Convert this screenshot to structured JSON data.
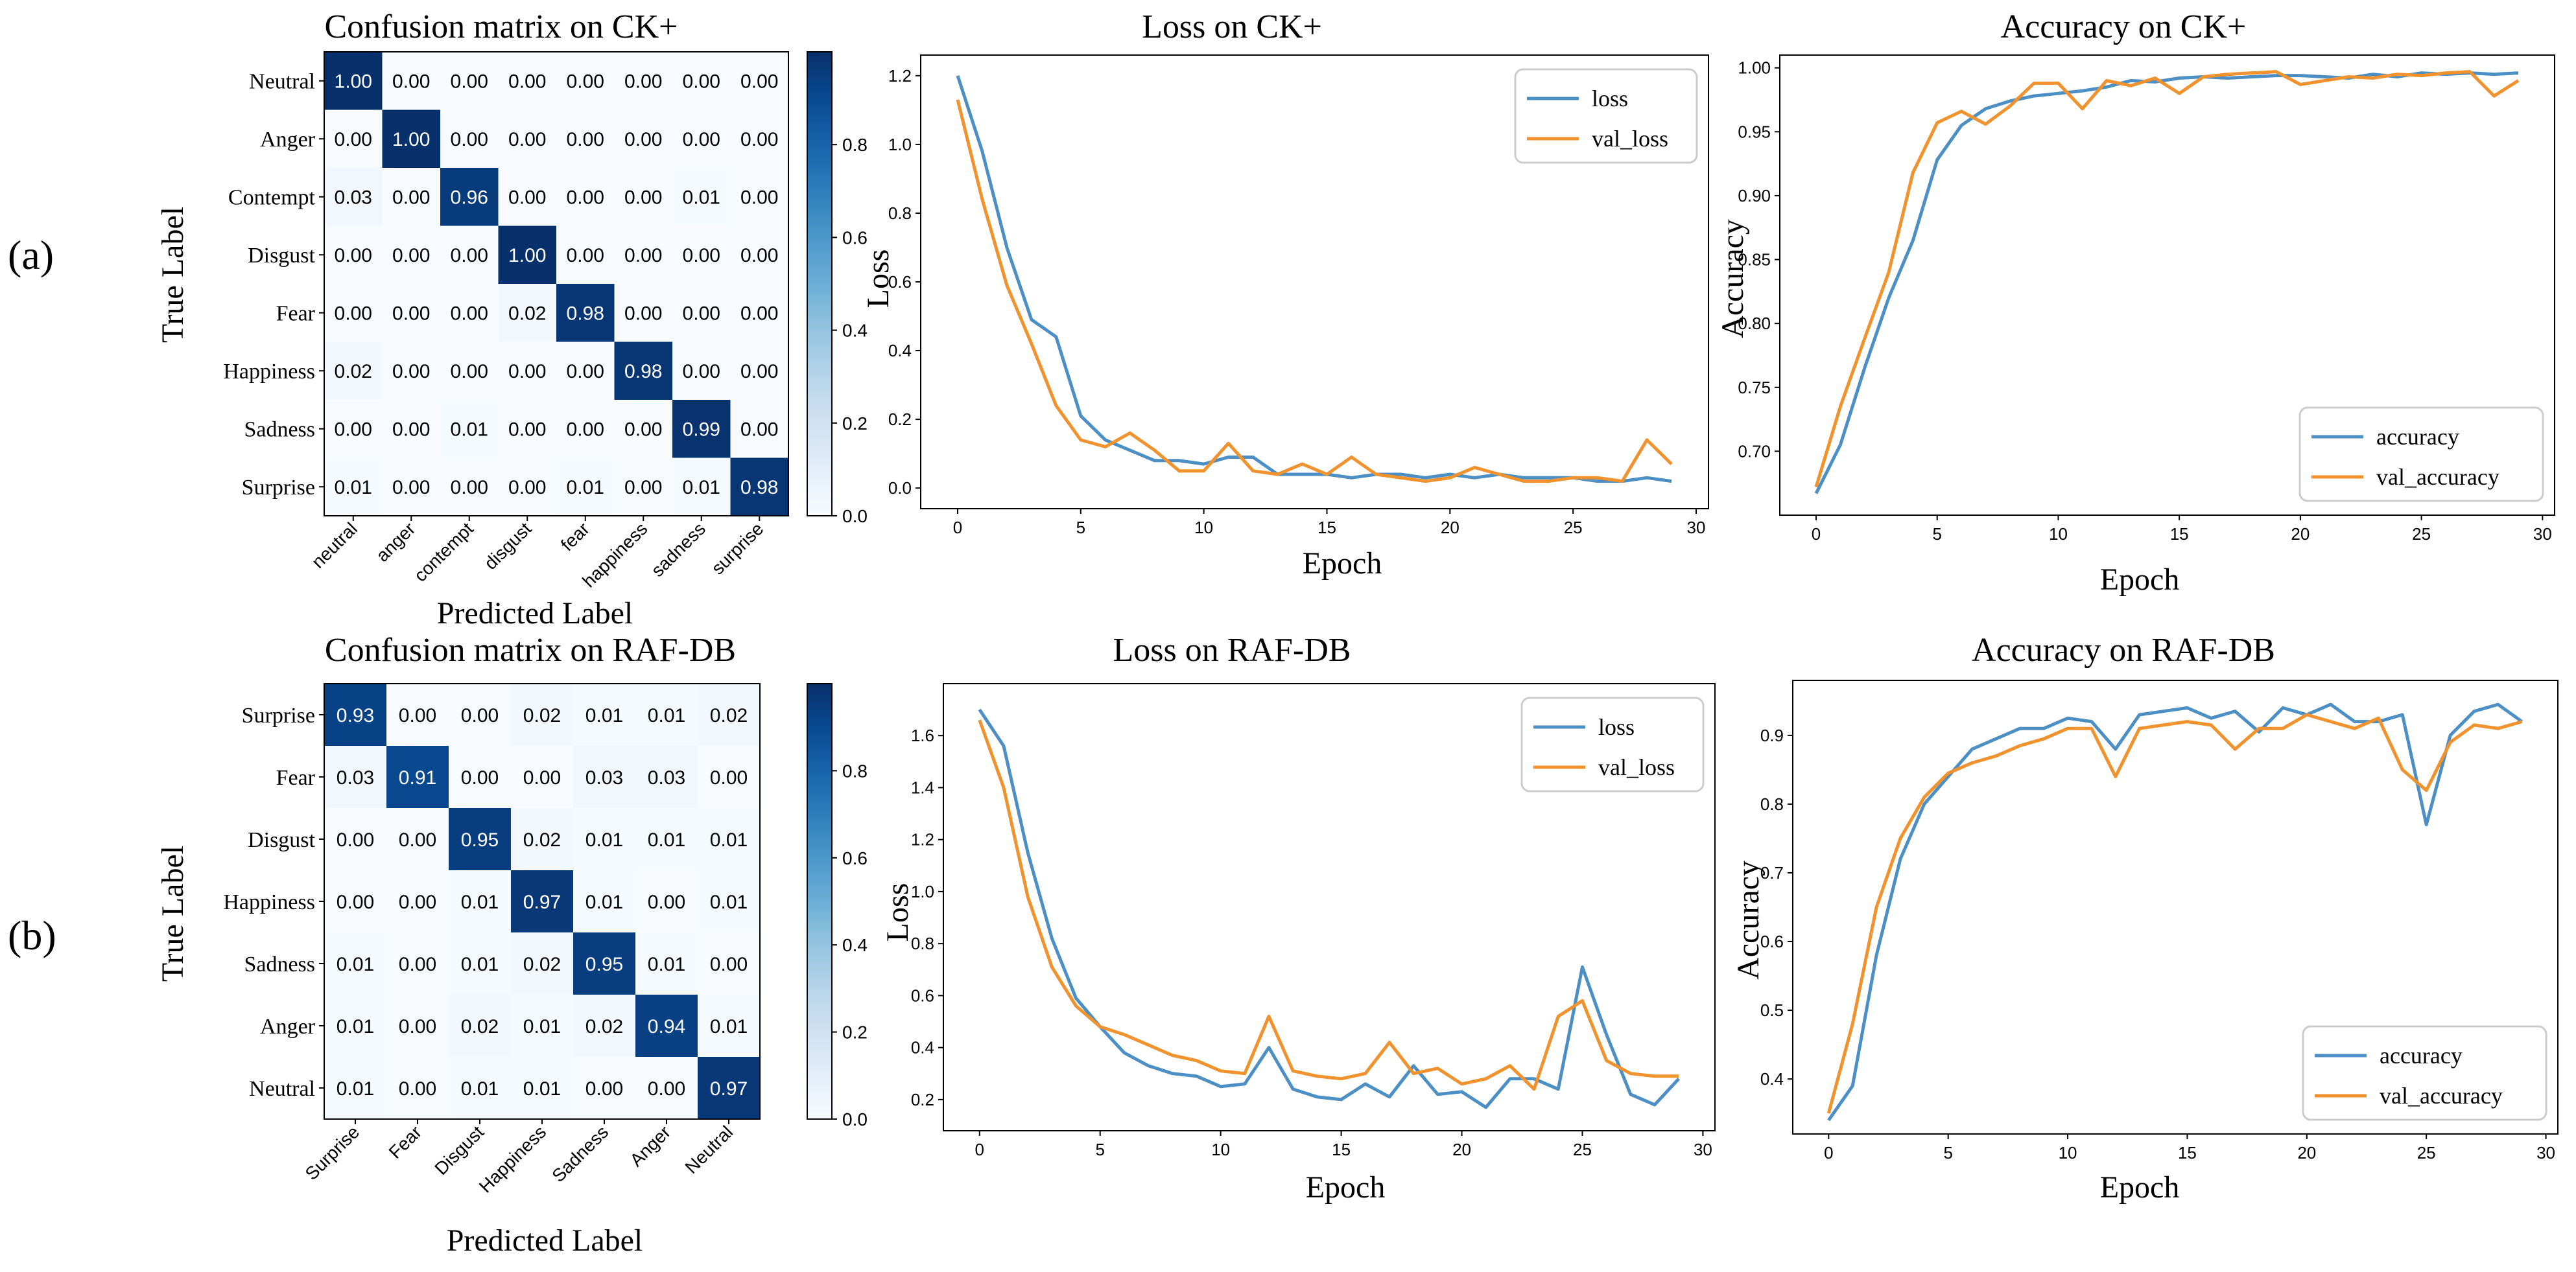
{
  "panel_labels": {
    "a": "(a)",
    "b": "(b)"
  },
  "colors": {
    "cm_low": "#f7fbff",
    "cm_high": "#08306b",
    "loss": "#4c8fc4",
    "val": "#f0922e",
    "frame": "#000000",
    "legend_border": "#cccccc"
  },
  "chart_data": [
    {
      "id": "cm-ck",
      "type": "heatmap",
      "title": "Confusion matrix on CK+",
      "xlabel": "Predicted Label",
      "ylabel": "True Label",
      "rows": [
        "Neutral",
        "Anger",
        "Contempt",
        "Disgust",
        "Fear",
        "Happiness",
        "Sadness",
        "Surprise"
      ],
      "cols": [
        "neutral",
        "anger",
        "contempt",
        "disgust",
        "fear",
        "happiness",
        "sadness",
        "surprise"
      ],
      "values": [
        [
          1.0,
          0.0,
          0.0,
          0.0,
          0.0,
          0.0,
          0.0,
          0.0
        ],
        [
          0.0,
          1.0,
          0.0,
          0.0,
          0.0,
          0.0,
          0.0,
          0.0
        ],
        [
          0.03,
          0.0,
          0.96,
          0.0,
          0.0,
          0.0,
          0.01,
          0.0
        ],
        [
          0.0,
          0.0,
          0.0,
          1.0,
          0.0,
          0.0,
          0.0,
          0.0
        ],
        [
          0.0,
          0.0,
          0.0,
          0.02,
          0.98,
          0.0,
          0.0,
          0.0
        ],
        [
          0.02,
          0.0,
          0.0,
          0.0,
          0.0,
          0.98,
          0.0,
          0.0
        ],
        [
          0.0,
          0.0,
          0.01,
          0.0,
          0.0,
          0.0,
          0.99,
          0.0
        ],
        [
          0.01,
          0.0,
          0.0,
          0.0,
          0.01,
          0.0,
          0.01,
          0.98
        ]
      ],
      "colorbar_ticks": [
        "0.0",
        "0.2",
        "0.4",
        "0.6",
        "0.8"
      ],
      "colorbar_range": [
        0,
        1
      ]
    },
    {
      "id": "loss-ck",
      "type": "line",
      "title": "Loss on CK+",
      "xlabel": "Epoch",
      "ylabel": "Loss",
      "xlim": [
        -1.5,
        30.5
      ],
      "ylim": [
        -0.06,
        1.26
      ],
      "xticks": [
        0,
        5,
        10,
        15,
        20,
        25,
        30
      ],
      "yticks": [
        0.0,
        0.2,
        0.4,
        0.6,
        0.8,
        1.0,
        1.2
      ],
      "legend_position": "top-right",
      "x": [
        0,
        1,
        2,
        3,
        4,
        5,
        6,
        7,
        8,
        9,
        10,
        11,
        12,
        13,
        14,
        15,
        16,
        17,
        18,
        19,
        20,
        21,
        22,
        23,
        24,
        25,
        26,
        27,
        28,
        29
      ],
      "series": [
        {
          "name": "loss",
          "color_key": "loss",
          "values": [
            1.2,
            0.98,
            0.7,
            0.49,
            0.44,
            0.21,
            0.14,
            0.11,
            0.08,
            0.08,
            0.07,
            0.09,
            0.09,
            0.04,
            0.04,
            0.04,
            0.03,
            0.04,
            0.04,
            0.03,
            0.04,
            0.03,
            0.04,
            0.03,
            0.03,
            0.03,
            0.02,
            0.02,
            0.03,
            0.02
          ]
        },
        {
          "name": "val_loss",
          "color_key": "val",
          "values": [
            1.13,
            0.84,
            0.59,
            0.42,
            0.24,
            0.14,
            0.12,
            0.16,
            0.11,
            0.05,
            0.05,
            0.13,
            0.05,
            0.04,
            0.07,
            0.04,
            0.09,
            0.04,
            0.03,
            0.02,
            0.03,
            0.06,
            0.04,
            0.02,
            0.02,
            0.03,
            0.03,
            0.02,
            0.14,
            0.07
          ]
        }
      ]
    },
    {
      "id": "acc-ck",
      "type": "line",
      "title": "Accuracy on CK+",
      "xlabel": "Epoch",
      "ylabel": "Accuracy",
      "xlim": [
        -1.5,
        30.5
      ],
      "ylim": [
        0.65,
        1.01
      ],
      "xticks": [
        0,
        5,
        10,
        15,
        20,
        25,
        30
      ],
      "yticks": [
        0.7,
        0.75,
        0.8,
        0.85,
        0.9,
        0.95,
        1.0
      ],
      "legend_position": "bottom-right",
      "x": [
        0,
        1,
        2,
        3,
        4,
        5,
        6,
        7,
        8,
        9,
        10,
        11,
        12,
        13,
        14,
        15,
        16,
        17,
        18,
        19,
        20,
        21,
        22,
        23,
        24,
        25,
        26,
        27,
        28,
        29
      ],
      "series": [
        {
          "name": "accuracy",
          "color_key": "loss",
          "values": [
            0.667,
            0.705,
            0.765,
            0.82,
            0.865,
            0.928,
            0.955,
            0.968,
            0.974,
            0.978,
            0.98,
            0.982,
            0.985,
            0.99,
            0.989,
            0.992,
            0.993,
            0.992,
            0.993,
            0.994,
            0.994,
            0.993,
            0.992,
            0.995,
            0.993,
            0.996,
            0.995,
            0.996,
            0.995,
            0.996
          ]
        },
        {
          "name": "val_accuracy",
          "color_key": "val",
          "values": [
            0.672,
            0.735,
            0.788,
            0.84,
            0.918,
            0.957,
            0.966,
            0.956,
            0.97,
            0.988,
            0.988,
            0.968,
            0.99,
            0.986,
            0.992,
            0.98,
            0.993,
            0.995,
            0.996,
            0.997,
            0.987,
            0.99,
            0.993,
            0.992,
            0.995,
            0.994,
            0.996,
            0.997,
            0.978,
            0.99
          ]
        }
      ]
    },
    {
      "id": "cm-raf",
      "type": "heatmap",
      "title": "Confusion matrix on RAF-DB",
      "xlabel": "Predicted Label",
      "ylabel": "True Label",
      "rows": [
        "Surprise",
        "Fear",
        "Disgust",
        "Happiness",
        "Sadness",
        "Anger",
        "Neutral"
      ],
      "cols": [
        "Surprise",
        "Fear",
        "Disgust",
        "Happiness",
        "Sadness",
        "Anger",
        "Neutral"
      ],
      "values": [
        [
          0.93,
          0.0,
          0.0,
          0.02,
          0.01,
          0.01,
          0.02
        ],
        [
          0.03,
          0.91,
          0.0,
          0.0,
          0.03,
          0.03,
          0.0
        ],
        [
          0.0,
          0.0,
          0.95,
          0.02,
          0.01,
          0.01,
          0.01
        ],
        [
          0.0,
          0.0,
          0.01,
          0.97,
          0.01,
          0.0,
          0.01
        ],
        [
          0.01,
          0.0,
          0.01,
          0.02,
          0.95,
          0.01,
          0.0
        ],
        [
          0.01,
          0.0,
          0.02,
          0.01,
          0.02,
          0.94,
          0.01
        ],
        [
          0.01,
          0.0,
          0.01,
          0.01,
          0.0,
          0.0,
          0.97
        ]
      ],
      "colorbar_ticks": [
        "0.0",
        "0.2",
        "0.4",
        "0.6",
        "0.8"
      ],
      "colorbar_range": [
        0,
        1
      ]
    },
    {
      "id": "loss-raf",
      "type": "line",
      "title": "Loss on RAF-DB",
      "xlabel": "Epoch",
      "ylabel": "Loss",
      "xlim": [
        -1.5,
        30.5
      ],
      "ylim": [
        0.08,
        1.8
      ],
      "xticks": [
        0,
        5,
        10,
        15,
        20,
        25,
        30
      ],
      "yticks": [
        0.2,
        0.4,
        0.6,
        0.8,
        1.0,
        1.2,
        1.4,
        1.6
      ],
      "legend_position": "top-right",
      "x": [
        0,
        1,
        2,
        3,
        4,
        5,
        6,
        7,
        8,
        9,
        10,
        11,
        12,
        13,
        14,
        15,
        16,
        17,
        18,
        19,
        20,
        21,
        22,
        23,
        24,
        25,
        26,
        27,
        28,
        29
      ],
      "series": [
        {
          "name": "loss",
          "color_key": "loss",
          "values": [
            1.7,
            1.56,
            1.15,
            0.82,
            0.59,
            0.48,
            0.38,
            0.33,
            0.3,
            0.29,
            0.25,
            0.26,
            0.4,
            0.24,
            0.21,
            0.2,
            0.26,
            0.21,
            0.33,
            0.22,
            0.23,
            0.17,
            0.28,
            0.28,
            0.24,
            0.71,
            0.45,
            0.22,
            0.18,
            0.28
          ]
        },
        {
          "name": "val_loss",
          "color_key": "val",
          "values": [
            1.66,
            1.4,
            0.98,
            0.71,
            0.56,
            0.48,
            0.45,
            0.41,
            0.37,
            0.35,
            0.31,
            0.3,
            0.52,
            0.31,
            0.29,
            0.28,
            0.3,
            0.42,
            0.3,
            0.32,
            0.26,
            0.28,
            0.33,
            0.24,
            0.52,
            0.58,
            0.35,
            0.3,
            0.29,
            0.29
          ]
        }
      ]
    },
    {
      "id": "acc-raf",
      "type": "line",
      "title": "Accuracy on RAF-DB",
      "xlabel": "Epoch",
      "ylabel": "Accuracy",
      "xlim": [
        -1.5,
        30.5
      ],
      "ylim": [
        0.32,
        0.98
      ],
      "xticks": [
        0,
        5,
        10,
        15,
        20,
        25,
        30
      ],
      "yticks": [
        0.4,
        0.5,
        0.6,
        0.7,
        0.8,
        0.9
      ],
      "legend_position": "bottom-right",
      "x": [
        0,
        1,
        2,
        3,
        4,
        5,
        6,
        7,
        8,
        9,
        10,
        11,
        12,
        13,
        14,
        15,
        16,
        17,
        18,
        19,
        20,
        21,
        22,
        23,
        24,
        25,
        26,
        27,
        28,
        29
      ],
      "series": [
        {
          "name": "accuracy",
          "color_key": "loss",
          "values": [
            0.34,
            0.39,
            0.58,
            0.72,
            0.8,
            0.84,
            0.88,
            0.895,
            0.91,
            0.91,
            0.925,
            0.92,
            0.88,
            0.93,
            0.935,
            0.94,
            0.925,
            0.935,
            0.905,
            0.94,
            0.93,
            0.945,
            0.92,
            0.92,
            0.93,
            0.77,
            0.9,
            0.935,
            0.945,
            0.92
          ]
        },
        {
          "name": "val_accuracy",
          "color_key": "val",
          "values": [
            0.35,
            0.48,
            0.65,
            0.75,
            0.81,
            0.845,
            0.86,
            0.87,
            0.885,
            0.895,
            0.91,
            0.91,
            0.84,
            0.91,
            0.915,
            0.92,
            0.915,
            0.88,
            0.91,
            0.91,
            0.93,
            0.92,
            0.91,
            0.925,
            0.85,
            0.82,
            0.89,
            0.915,
            0.91,
            0.92
          ]
        }
      ]
    }
  ]
}
